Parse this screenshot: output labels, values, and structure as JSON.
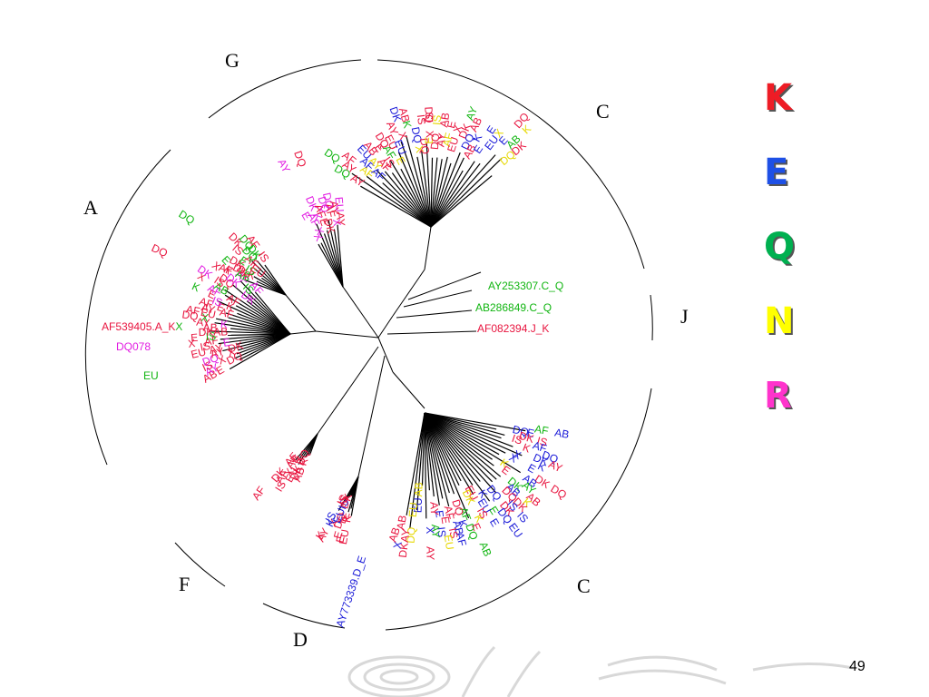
{
  "clades": {
    "G": "G",
    "C_top": "C",
    "A": "A",
    "J": "J",
    "F": "F",
    "D": "D",
    "C_bottom": "C"
  },
  "sequence_labels": {
    "c_q_1": "AY253307.C_Q",
    "c_q_2": "AB286849.C_Q",
    "j_k": "AF082394.J_K",
    "d_e": "AY773339.D_E",
    "a_k_1": "AF539405.A_K",
    "a_r_1": "DQ078",
    "a_q_1": "EU",
    "c_e_1": "AB",
    "d_k_1": "AY",
    "f_k_1": "AF",
    "g_k_1": "DQ",
    "g_r_1": "AY",
    "a_q_2": "DQ",
    "a_k_2": "DQ"
  },
  "legend": [
    {
      "letter": "K",
      "color": "#ee1c25"
    },
    {
      "letter": "E",
      "color": "#1e50e6"
    },
    {
      "letter": "Q",
      "color": "#00b050"
    },
    {
      "letter": "N",
      "color": "#ffff00"
    },
    {
      "letter": "R",
      "color": "#ff33cc"
    }
  ],
  "colors": {
    "K": "#e8153f",
    "E": "#1a1ad8",
    "Q": "#11b511",
    "N": "#e6d800",
    "R": "#e21ee2",
    "branch": "#000000"
  },
  "page_number": "49"
}
